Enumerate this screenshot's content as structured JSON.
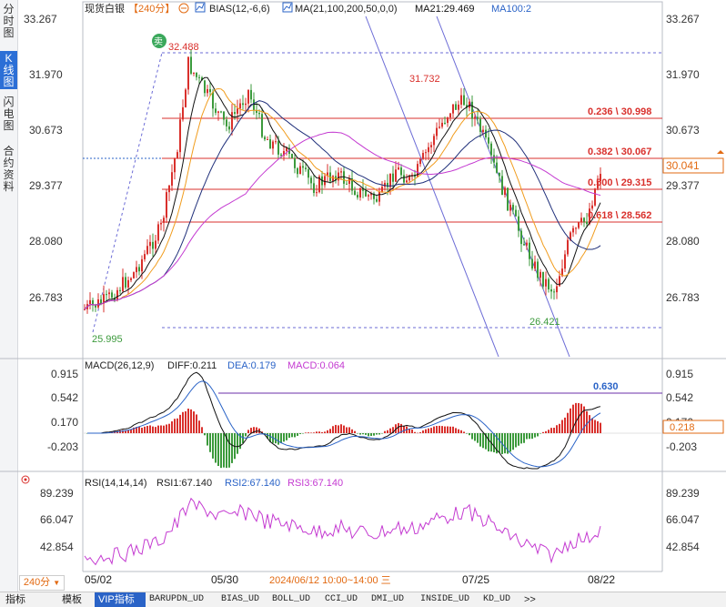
{
  "sidebar": {
    "tabs": [
      {
        "label": "分时图",
        "active": false
      },
      {
        "label": "K线图",
        "active": true
      },
      {
        "label": "闪电图",
        "active": false
      },
      {
        "label": "合约资料",
        "active": false
      }
    ]
  },
  "header": {
    "symbol": "现货白银",
    "period": "【240分】",
    "indicator1": "BIAS(12,-6,6)",
    "indicator2": "MA(21,100,200,50,0,0)",
    "ma21": "MA21:29.469",
    "ma100": "MA100:2"
  },
  "price_axis": {
    "labels": [
      "33.267",
      "31.970",
      "30.673",
      "29.377",
      "28.080",
      "26.783"
    ],
    "current_price": "30.041",
    "high_marker": "32.488",
    "local_high": "31.732",
    "low_marker_left": "25.995",
    "low_marker_right": "26.421",
    "sell_badge": "卖"
  },
  "fib_levels": [
    {
      "label": "0.236 \\ 30.998"
    },
    {
      "label": "0.382 \\ 30.067"
    },
    {
      "label": "0.500 \\ 29.315"
    },
    {
      "label": "0.618 \\ 28.562"
    }
  ],
  "macd": {
    "title": "MACD(26,12,9)",
    "diff": "DIFF:0.211",
    "dea": "DEA:0.179",
    "macd": "MACD:0.064",
    "axis_labels": [
      "0.915",
      "0.542",
      "0.170",
      "-0.203"
    ],
    "current": "0.218",
    "hline_label": "0.630"
  },
  "rsi": {
    "title": "RSI(14,14,14)",
    "rsi1": "RSI1:67.140",
    "rsi2": "RSI2:67.140",
    "rsi3": "RSI3:67.140",
    "axis_labels": [
      "89.239",
      "66.047",
      "42.854"
    ]
  },
  "x_axis": {
    "period_button": "240分",
    "dates": [
      "05/02",
      "05/30",
      "07/25",
      "08/22"
    ],
    "cursor_time": "2024/06/12 10:00~14:00 三"
  },
  "bottom_tabs": [
    {
      "label": "指标",
      "active": false
    },
    {
      "label": "模板",
      "active": false
    },
    {
      "label": "VIP指标",
      "active": true
    },
    {
      "label": "BARUPDN_UD",
      "active": false
    },
    {
      "label": "BIAS_UD",
      "active": false
    },
    {
      "label": "BOLL_UD",
      "active": false
    },
    {
      "label": "CCI_UD",
      "active": false
    },
    {
      "label": "DMI_UD",
      "active": false
    },
    {
      "label": "INSIDE_UD",
      "active": false
    },
    {
      "label": "KD_UD",
      "active": false
    },
    {
      "label": ">>",
      "active": false
    }
  ],
  "colors": {
    "up": "#d9302c",
    "down": "#3c9a3c",
    "ma_black": "#111111",
    "ma_orange": "#f19c1d",
    "ma_magenta": "#c43ad1",
    "fib": "#d9302c",
    "channel": "#6b6bd6",
    "accent": "#e26a12"
  }
}
